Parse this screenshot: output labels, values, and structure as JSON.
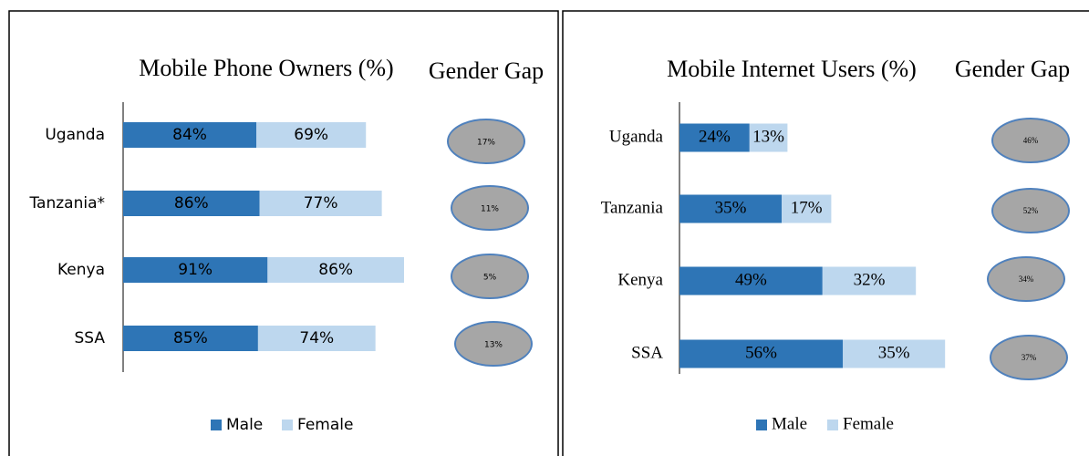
{
  "chart_data": [
    {
      "type": "stacked-bar-horizontal",
      "title": "Mobile Phone Owners (%)",
      "annotation": "Gender Gap",
      "categories": [
        "Uganda",
        "Tanzania*",
        "Kenya",
        "SSA"
      ],
      "series": [
        {
          "name": "Male",
          "color": "#2e75b6",
          "values": [
            84,
            86,
            91,
            85
          ],
          "value_labels": [
            "84%",
            "86%",
            "91%",
            "85%"
          ]
        },
        {
          "name": "Female",
          "color": "#bdd7ee",
          "values": [
            69,
            77,
            86,
            74
          ],
          "value_labels": [
            "69%",
            "77%",
            "86%",
            "74%"
          ]
        }
      ],
      "gender_gap": {
        "values": [
          17,
          11,
          5,
          13
        ],
        "value_labels": [
          "17%",
          "11%",
          "5%",
          "13%"
        ],
        "color": "#a6a6a6"
      },
      "legend": "bottom"
    },
    {
      "type": "stacked-bar-horizontal",
      "title": "Mobile Internet Users (%)",
      "annotation": "Gender Gap",
      "categories": [
        "Uganda",
        "Tanzania",
        "Kenya",
        "SSA"
      ],
      "series": [
        {
          "name": "Male",
          "color": "#2e75b6",
          "values": [
            24,
            35,
            49,
            56
          ],
          "value_labels": [
            "24%",
            "35%",
            "49%",
            "56%"
          ]
        },
        {
          "name": "Female",
          "color": "#bdd7ee",
          "values": [
            13,
            17,
            32,
            35
          ],
          "value_labels": [
            "13%",
            "17%",
            "32%",
            "35%"
          ]
        }
      ],
      "gender_gap": {
        "values": [
          46,
          52,
          34,
          37
        ],
        "value_labels": [
          "46%",
          "52%",
          "34%",
          "37%"
        ],
        "color": "#a6a6a6"
      },
      "legend": "bottom"
    }
  ]
}
